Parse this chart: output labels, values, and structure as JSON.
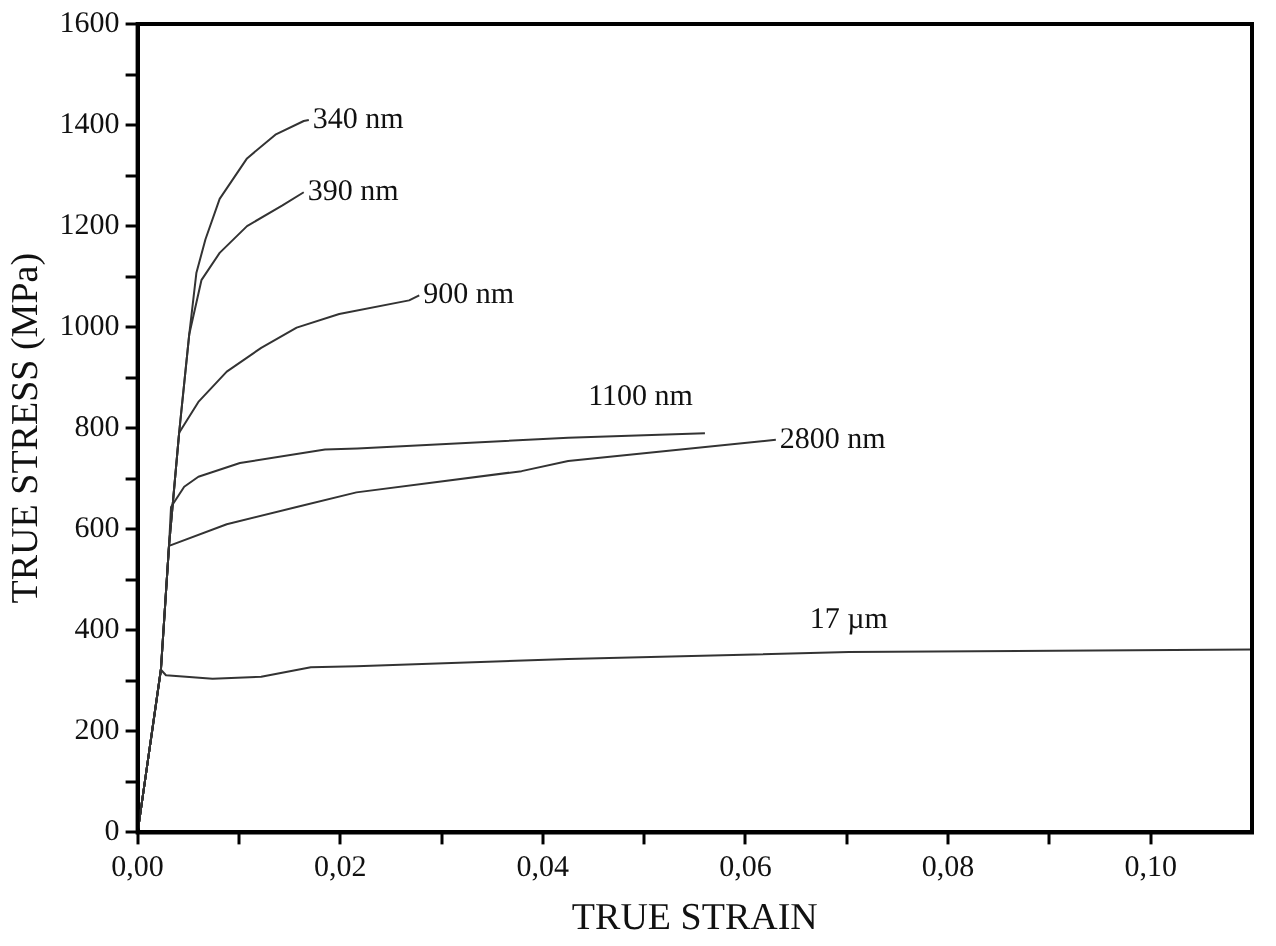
{
  "chart_data": {
    "type": "line",
    "xlabel": "TRUE STRAIN",
    "ylabel": "TRUE STRESS (MPa)",
    "xlim": [
      0,
      0.11
    ],
    "ylim": [
      0,
      1600
    ],
    "xticks": [
      {
        "value": 0,
        "label": "0,00"
      },
      {
        "value": 0.01,
        "label": null
      },
      {
        "value": 0.02,
        "label": "0,02"
      },
      {
        "value": 0.03,
        "label": null
      },
      {
        "value": 0.04,
        "label": "0,04"
      },
      {
        "value": 0.05,
        "label": null
      },
      {
        "value": 0.06,
        "label": "0,06"
      },
      {
        "value": 0.07,
        "label": null
      },
      {
        "value": 0.08,
        "label": "0,08"
      },
      {
        "value": 0.09,
        "label": null
      },
      {
        "value": 0.1,
        "label": "0,10"
      }
    ],
    "yticks": [
      0,
      {
        "value": 100,
        "label": null
      },
      200,
      {
        "value": 300,
        "label": null
      },
      400,
      {
        "value": 500,
        "label": null
      },
      600,
      {
        "value": 700,
        "label": null
      },
      800,
      {
        "value": 900,
        "label": null
      },
      1000,
      {
        "value": 1100,
        "label": null
      },
      1200,
      {
        "value": 1300,
        "label": null
      },
      1400,
      {
        "value": 1500,
        "label": null
      },
      1600
    ],
    "series": [
      {
        "name": "340 nm",
        "color": "#333333",
        "x": [
          0,
          0.0023,
          0.0031,
          0.0041,
          0.0051,
          0.0058,
          0.0067,
          0.0081,
          0.0108,
          0.0136,
          0.0164,
          0.0169
        ],
        "values": [
          0,
          322,
          567,
          791,
          986,
          1107,
          1174,
          1254,
          1334,
          1381,
          1408,
          1410
        ]
      },
      {
        "name": "390 nm",
        "color": "#333333",
        "x": [
          0,
          0.0023,
          0.0031,
          0.0041,
          0.0051,
          0.0063,
          0.0081,
          0.0108,
          0.0143,
          0.0164
        ],
        "values": [
          0,
          322,
          567,
          791,
          986,
          1093,
          1147,
          1200,
          1241,
          1267
        ]
      },
      {
        "name": "900 nm",
        "color": "#333333",
        "x": [
          0,
          0.0023,
          0.0031,
          0.0041,
          0.006,
          0.0088,
          0.0122,
          0.0157,
          0.0199,
          0.0268,
          0.0278
        ],
        "values": [
          0,
          322,
          567,
          791,
          852,
          912,
          959,
          999,
          1026,
          1053,
          1063
        ]
      },
      {
        "name": "1100 nm",
        "color": "#333333",
        "x": [
          0,
          0.0023,
          0.0031,
          0.0033,
          0.0046,
          0.006,
          0.0101,
          0.0185,
          0.0217,
          0.0425,
          0.056
        ],
        "values": [
          0,
          322,
          567,
          644,
          684,
          704,
          731,
          758,
          760,
          781,
          790
        ]
      },
      {
        "name": "2800 nm",
        "color": "#333333",
        "x": [
          0,
          0.0023,
          0.0031,
          0.0088,
          0.0157,
          0.0216,
          0.0379,
          0.0425,
          0.063
        ],
        "values": [
          0,
          322,
          567,
          610,
          644,
          673,
          715,
          735,
          777
        ]
      },
      {
        "name": "17 µm",
        "color": "#333333",
        "x": [
          0,
          0.0023,
          0.0028,
          0.0074,
          0.0122,
          0.0171,
          0.0216,
          0.0425,
          0.0702,
          0.11
        ],
        "values": [
          0,
          322,
          311,
          304,
          308,
          327,
          329,
          343,
          357,
          362
        ]
      }
    ]
  }
}
